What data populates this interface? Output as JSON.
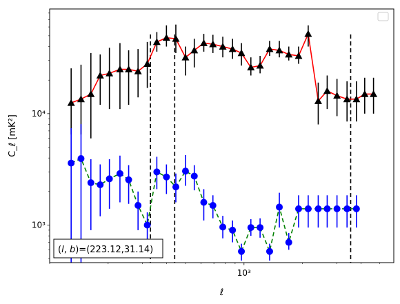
{
  "chart_data": {
    "type": "scatter",
    "title": "",
    "xlabel": "ℓ",
    "ylabel": "C_ℓ  [mK²]",
    "xscale": "log",
    "yscale": "log",
    "xlim": [
      100,
      5900
    ],
    "ylim": [
      460,
      87000
    ],
    "grid": false,
    "legend": {
      "placement": "top-right",
      "entries": []
    },
    "x_tick_labels": [
      {
        "value": 1000,
        "label": "10³"
      }
    ],
    "y_tick_labels": [
      {
        "value": 1000,
        "label": "10³"
      },
      {
        "value": 10000,
        "label": "10⁴"
      }
    ],
    "vertical_lines": [
      {
        "x": 330,
        "color": "#000000",
        "style": "dashed"
      },
      {
        "x": 440,
        "color": "#000000",
        "style": "dashed"
      },
      {
        "x": 3540,
        "color": "#000000",
        "style": "dashed"
      }
    ],
    "annotation": {
      "text": "(l, b)=(223.12,31.14)",
      "parts": [
        {
          "text": "(",
          "italic": false
        },
        {
          "text": "l",
          "italic": true
        },
        {
          "text": ", ",
          "italic": false
        },
        {
          "text": "b",
          "italic": true
        },
        {
          "text": ")=(223.12,31.14)",
          "italic": false
        }
      ],
      "placement": "bottom-left"
    },
    "series": [
      {
        "marker": "triangle",
        "marker_color": "#000000",
        "line_color": "#ff0000",
        "line_style": "solid",
        "errorbar_color": "#000000",
        "x": [
          129,
          145,
          163,
          182,
          203,
          230,
          255,
          285,
          318,
          356,
          399,
          446,
          500,
          555,
          621,
          692,
          778,
          873,
          970,
          1085,
          1210,
          1355,
          1520,
          1700,
          1910,
          2140,
          2410,
          2680,
          3010,
          3390,
          3790,
          4180,
          4640
        ],
        "y": [
          12500,
          13500,
          15000,
          22000,
          23000,
          25000,
          25000,
          24000,
          28000,
          44000,
          48000,
          47000,
          32000,
          37000,
          43000,
          42000,
          40000,
          38000,
          35000,
          26000,
          27000,
          38000,
          37000,
          34000,
          33000,
          52000,
          13000,
          16000,
          14500,
          13500,
          13500,
          15000,
          15000
        ],
        "y_err_low": [
          6000,
          7000,
          9000,
          10000,
          12000,
          14000,
          13000,
          10000,
          11000,
          8000,
          8000,
          12000,
          10000,
          11000,
          7000,
          7000,
          8000,
          7000,
          8000,
          4000,
          4000,
          5000,
          5000,
          4000,
          5000,
          12000,
          5000,
          5000,
          5000,
          5000,
          5000,
          5000,
          5000
        ],
        "y_err_high": [
          13000,
          14000,
          20000,
          12000,
          16000,
          18000,
          12000,
          14000,
          16000,
          10000,
          14000,
          16000,
          8000,
          10000,
          9000,
          9000,
          9000,
          9000,
          8000,
          6000,
          6000,
          7000,
          8000,
          6000,
          7000,
          10000,
          6000,
          6000,
          6000,
          6000,
          6000,
          6000,
          6000
        ]
      },
      {
        "marker": "circle",
        "marker_color": "#0000ff",
        "line_color": "#008000",
        "line_style": "dashed",
        "errorbar_color": "#0000ff",
        "x": [
          129,
          145,
          163,
          182,
          203,
          230,
          255,
          285,
          318,
          356,
          399,
          446,
          500,
          555,
          621,
          692,
          778,
          873,
          970,
          1085,
          1210,
          1355,
          1520,
          1700,
          1910,
          2140,
          2410,
          2680,
          3010,
          3390,
          3790
        ],
        "y": [
          3600,
          3950,
          2400,
          2300,
          2600,
          2900,
          2550,
          1500,
          1000,
          3000,
          2700,
          2200,
          3050,
          2750,
          1600,
          1500,
          960,
          900,
          580,
          950,
          950,
          580,
          1450,
          700,
          1400,
          1400,
          1400,
          1400,
          1400,
          1400,
          1400
        ],
        "y_err_low": [
          3200,
          3500,
          1500,
          1100,
          1200,
          1300,
          1000,
          600,
          400,
          900,
          800,
          600,
          800,
          700,
          500,
          350,
          200,
          200,
          100,
          150,
          180,
          100,
          500,
          100,
          450,
          450,
          450,
          450,
          450,
          450,
          450
        ],
        "y_err_high": [
          3800,
          4100,
          1500,
          1200,
          1300,
          1300,
          900,
          500,
          300,
          1100,
          800,
          700,
          1200,
          700,
          500,
          350,
          250,
          200,
          100,
          180,
          200,
          100,
          500,
          150,
          450,
          450,
          450,
          450,
          450,
          450,
          450
        ]
      }
    ]
  }
}
